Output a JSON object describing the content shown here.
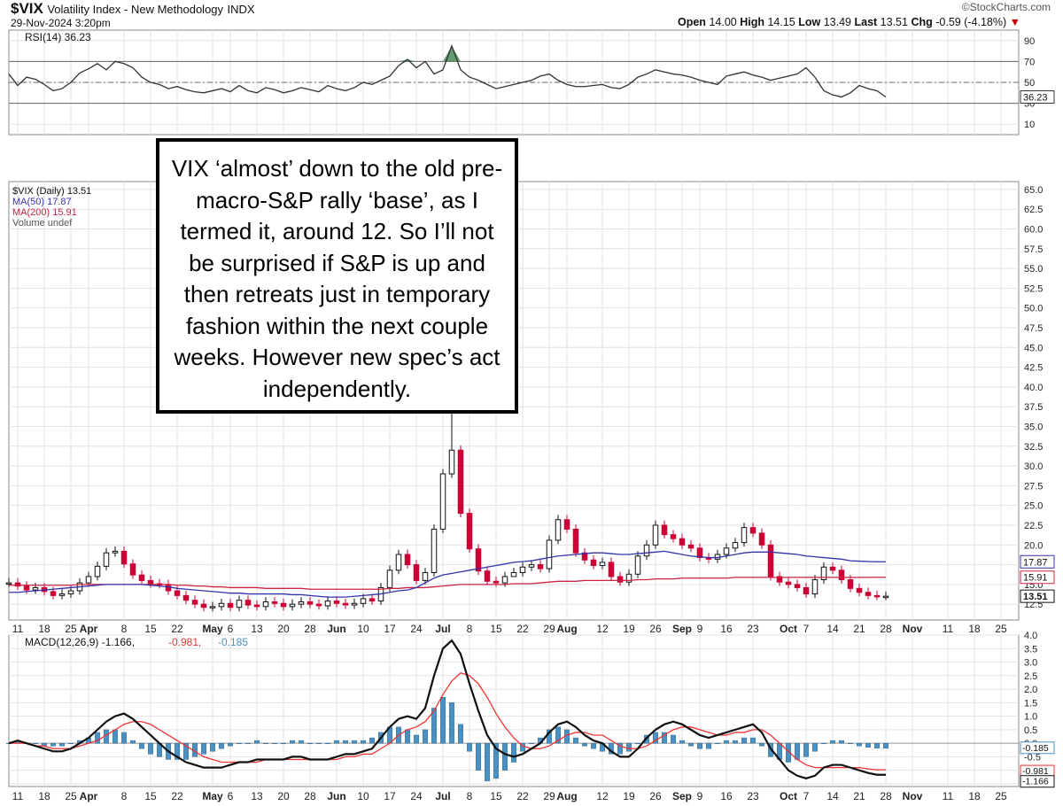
{
  "header": {
    "symbol": "$VIX",
    "name": "Volatility Index - New Methodology",
    "exchange": "INDX",
    "datetime": "29-Nov-2024 3:20pm",
    "brand": "©StockCharts.com",
    "quote": {
      "open_label": "Open",
      "open": "14.00",
      "high_label": "High",
      "high": "14.15",
      "low_label": "Low",
      "low": "13.49",
      "last_label": "Last",
      "last": "13.51",
      "chg_label": "Chg",
      "chg": "-0.59 (-4.18%)",
      "chg_arrow": "▼"
    }
  },
  "annotation": "VIX ‘almost’ down to the old pre-macro-S&P rally ‘base’, as I termed it, around 12. So I’ll not be surprised if S&P is up and then retreats just in temporary fashion within the next couple weeks. However new spec’s act independently.",
  "colors": {
    "up": "#111111",
    "down": "#cc0033",
    "ma50": "#3333aa",
    "ma200": "#cc2244",
    "macd": "#111111",
    "signal": "#ee3333",
    "hist": "#4a90c2",
    "rsi": "#333333",
    "rsi_fill": "#4a8a5a"
  },
  "chart_data": [
    {
      "type": "line",
      "panel": "rsi",
      "legend": "RSI(14) 36.23",
      "last_label": "36.23",
      "yticks": [
        "90",
        "70",
        "50",
        "30",
        "10"
      ],
      "ylim": [
        0,
        100
      ],
      "reference_lines": [
        70,
        50,
        30
      ],
      "x": [
        0,
        2,
        4,
        6,
        8,
        10,
        12,
        14,
        16,
        18,
        20,
        22,
        24,
        26,
        28,
        30,
        32,
        34,
        36,
        38,
        40,
        42,
        44,
        46,
        48,
        50,
        52,
        54,
        56,
        58,
        60,
        62,
        64,
        66,
        68,
        70,
        72,
        74,
        76,
        78,
        80,
        82,
        84,
        86,
        88,
        90,
        92,
        94,
        96,
        98,
        100,
        102,
        104,
        106,
        108,
        110,
        112,
        114,
        116,
        118,
        120,
        122,
        124,
        126,
        128,
        130,
        132,
        134,
        136,
        138,
        140,
        142,
        144,
        146,
        148,
        150,
        152,
        154,
        156,
        158,
        160,
        162,
        164,
        166,
        168,
        170,
        172,
        174,
        176,
        178,
        180,
        182,
        184,
        186,
        188,
        190,
        192,
        194,
        196,
        198
      ],
      "values": [
        58,
        47,
        55,
        53,
        48,
        42,
        44,
        50,
        59,
        63,
        68,
        62,
        70,
        68,
        64,
        55,
        50,
        48,
        44,
        46,
        43,
        41,
        40,
        42,
        44,
        41,
        47,
        42,
        40,
        45,
        43,
        40,
        42,
        45,
        43,
        41,
        47,
        44,
        42,
        45,
        50,
        48,
        52,
        56,
        66,
        72,
        64,
        70,
        58,
        62,
        85,
        62,
        55,
        52,
        48,
        44,
        46,
        48,
        50,
        52,
        56,
        58,
        52,
        48,
        46,
        46,
        47,
        48,
        45,
        44,
        48,
        55,
        58,
        62,
        60,
        58,
        57,
        55,
        52,
        50,
        48,
        56,
        58,
        60,
        57,
        55,
        52,
        54,
        56,
        58,
        64,
        55,
        42,
        38,
        36,
        40,
        47,
        44,
        42,
        36
      ],
      "series_name": "RSI(14)"
    },
    {
      "type": "candlestick",
      "panel": "price",
      "legend": [
        "$VIX (Daily) 13.51",
        "MA(50) 17.87",
        "MA(200) 15.91",
        "Volume undef"
      ],
      "yticks": [
        "65.0",
        "62.5",
        "60.0",
        "57.5",
        "55.0",
        "52.5",
        "50.0",
        "47.5",
        "45.0",
        "42.5",
        "40.0",
        "37.5",
        "35.0",
        "32.5",
        "30.0",
        "27.5",
        "25.0",
        "22.5",
        "20.0",
        "17.5",
        "15.0",
        "12.5"
      ],
      "ylim": [
        10.5,
        66
      ],
      "last_labels": {
        "ma50": "17.87",
        "ma200": "15.91",
        "last": "13.51"
      },
      "x": [
        0,
        2,
        4,
        6,
        8,
        10,
        12,
        14,
        16,
        18,
        20,
        22,
        24,
        26,
        28,
        30,
        32,
        34,
        36,
        38,
        40,
        42,
        44,
        46,
        48,
        50,
        52,
        54,
        56,
        58,
        60,
        62,
        64,
        66,
        68,
        70,
        72,
        74,
        76,
        78,
        80,
        82,
        84,
        86,
        88,
        90,
        92,
        94,
        96,
        98,
        100,
        102,
        104,
        106,
        108,
        110,
        112,
        114,
        116,
        118,
        120,
        122,
        124,
        126,
        128,
        130,
        132,
        134,
        136,
        138,
        140,
        142,
        144,
        146,
        148,
        150,
        152,
        154,
        156,
        158,
        160,
        162,
        164,
        166,
        168,
        170,
        172,
        174,
        176,
        178,
        180,
        182,
        184,
        186,
        188,
        190,
        192,
        194,
        196,
        198
      ],
      "close": [
        15.2,
        14.8,
        14.3,
        14.6,
        14.1,
        13.6,
        13.8,
        14.2,
        15.2,
        16.0,
        17.3,
        19.0,
        19.2,
        17.6,
        16.2,
        15.5,
        15.1,
        15.0,
        14.2,
        13.6,
        13.0,
        12.5,
        12.1,
        12.2,
        12.6,
        12.1,
        13.0,
        12.4,
        12.2,
        12.8,
        12.6,
        12.2,
        12.5,
        12.8,
        12.5,
        12.3,
        12.9,
        12.6,
        12.4,
        12.6,
        13.2,
        12.9,
        14.6,
        16.8,
        18.8,
        17.5,
        15.5,
        16.5,
        22.0,
        29.0,
        32.0,
        24.0,
        19.5,
        16.7,
        15.4,
        15.2,
        16.0,
        16.5,
        17.2,
        17.5,
        17.0,
        20.6,
        23.2,
        22.0,
        19.0,
        18.1,
        17.4,
        17.8,
        16.0,
        15.3,
        16.3,
        18.6,
        20.0,
        22.5,
        21.3,
        20.8,
        20.0,
        19.6,
        18.4,
        18.2,
        18.8,
        19.6,
        20.3,
        22.2,
        21.5,
        20.0,
        16.0,
        15.3,
        15.0,
        14.6,
        13.8,
        15.6,
        17.2,
        16.8,
        15.6,
        14.5,
        14.0,
        13.6,
        13.51,
        13.51
      ],
      "ma50": [
        14.0,
        14.0,
        14.1,
        14.2,
        14.3,
        14.4,
        14.5,
        14.6,
        14.7,
        14.8,
        14.9,
        15.0,
        15.0,
        15.0,
        15.0,
        15.0,
        14.9,
        14.8,
        14.7,
        14.5,
        14.4,
        14.3,
        14.2,
        14.1,
        14.0,
        13.9,
        13.9,
        13.8,
        13.8,
        13.8,
        13.8,
        13.8,
        13.7,
        13.7,
        13.6,
        13.5,
        13.4,
        13.4,
        13.4,
        13.5,
        13.6,
        13.7,
        13.8,
        14.0,
        14.2,
        14.3,
        14.6,
        15.2,
        15.8,
        16.2,
        16.4,
        16.6,
        16.8,
        17.0,
        17.2,
        17.4,
        17.6,
        17.8,
        17.9,
        18.0,
        18.2,
        18.4,
        18.6,
        18.7,
        18.8,
        18.9,
        19.0,
        19.0,
        18.9,
        18.8,
        18.8,
        18.9,
        19.0,
        19.1,
        19.2,
        19.0,
        18.8,
        18.6,
        18.5,
        18.4,
        18.4,
        18.6,
        18.8,
        19.0,
        19.1,
        19.1,
        19.1,
        19.0,
        18.9,
        18.8,
        18.6,
        18.5,
        18.4,
        18.3,
        18.2,
        18.0,
        17.95,
        17.9,
        17.87,
        17.87
      ],
      "ma200": [
        14.9,
        14.9,
        14.9,
        14.9,
        14.9,
        14.9,
        14.9,
        14.9,
        15.0,
        15.0,
        15.0,
        15.0,
        15.0,
        15.0,
        15.0,
        15.0,
        15.0,
        15.0,
        15.0,
        14.9,
        14.9,
        14.8,
        14.8,
        14.7,
        14.7,
        14.6,
        14.6,
        14.6,
        14.6,
        14.5,
        14.5,
        14.5,
        14.5,
        14.5,
        14.4,
        14.4,
        14.4,
        14.4,
        14.4,
        14.4,
        14.4,
        14.4,
        14.4,
        14.5,
        14.5,
        14.6,
        14.6,
        14.6,
        14.7,
        14.8,
        14.9,
        15.0,
        15.0,
        15.0,
        15.0,
        15.0,
        15.0,
        15.1,
        15.1,
        15.1,
        15.2,
        15.3,
        15.4,
        15.4,
        15.4,
        15.5,
        15.5,
        15.5,
        15.5,
        15.5,
        15.5,
        15.6,
        15.6,
        15.7,
        15.7,
        15.7,
        15.8,
        15.8,
        15.8,
        15.8,
        15.8,
        15.8,
        15.9,
        15.9,
        15.9,
        15.9,
        15.9,
        15.9,
        15.9,
        15.9,
        15.9,
        15.9,
        15.9,
        15.9,
        15.9,
        15.9,
        15.9,
        15.9,
        15.91,
        15.91
      ],
      "series_names": [
        "$VIX (Daily)",
        "MA(50)",
        "MA(200)"
      ]
    },
    {
      "type": "line",
      "panel": "macd",
      "legend_prefix": "MACD(12,26,9)",
      "legend_macd": "-1.166",
      "legend_signal": "-0.981",
      "legend_hist": "-0.185",
      "last_labels": {
        "hist": "-0.185",
        "signal": "-0.981",
        "macd": "-1.166"
      },
      "yticks": [
        "4.0",
        "3.5",
        "3.0",
        "2.5",
        "2.0",
        "1.5",
        "1.0",
        "0.5",
        "0.0",
        "-0.5",
        "-1.0",
        "-1.5"
      ],
      "ylim": [
        -1.6,
        4.0
      ],
      "x": [
        0,
        2,
        4,
        6,
        8,
        10,
        12,
        14,
        16,
        18,
        20,
        22,
        24,
        26,
        28,
        30,
        32,
        34,
        36,
        38,
        40,
        42,
        44,
        46,
        48,
        50,
        52,
        54,
        56,
        58,
        60,
        62,
        64,
        66,
        68,
        70,
        72,
        74,
        76,
        78,
        80,
        82,
        84,
        86,
        88,
        90,
        92,
        94,
        96,
        98,
        100,
        102,
        104,
        106,
        108,
        110,
        112,
        114,
        116,
        118,
        120,
        122,
        124,
        126,
        128,
        130,
        132,
        134,
        136,
        138,
        140,
        142,
        144,
        146,
        148,
        150,
        152,
        154,
        156,
        158,
        160,
        162,
        164,
        166,
        168,
        170,
        172,
        174,
        176,
        178,
        180,
        182,
        184,
        186,
        188,
        190,
        192,
        194,
        196,
        198
      ],
      "macd": [
        0.0,
        0.1,
        0.0,
        -0.1,
        -0.2,
        -0.3,
        -0.3,
        -0.2,
        0.0,
        0.2,
        0.5,
        0.8,
        1.0,
        1.1,
        0.9,
        0.6,
        0.3,
        0.0,
        -0.3,
        -0.5,
        -0.7,
        -0.8,
        -0.9,
        -0.9,
        -0.9,
        -0.8,
        -0.7,
        -0.7,
        -0.6,
        -0.6,
        -0.6,
        -0.6,
        -0.5,
        -0.5,
        -0.6,
        -0.6,
        -0.6,
        -0.5,
        -0.4,
        -0.4,
        -0.3,
        -0.2,
        0.2,
        0.6,
        0.9,
        1.0,
        0.9,
        1.3,
        2.5,
        3.5,
        3.8,
        3.3,
        2.2,
        1.2,
        0.3,
        -0.2,
        -0.4,
        -0.5,
        -0.4,
        -0.2,
        0.0,
        0.4,
        0.7,
        0.8,
        0.6,
        0.3,
        0.1,
        0.0,
        -0.3,
        -0.5,
        -0.5,
        -0.2,
        0.2,
        0.5,
        0.7,
        0.8,
        0.7,
        0.5,
        0.3,
        0.2,
        0.3,
        0.4,
        0.5,
        0.6,
        0.7,
        0.4,
        -0.2,
        -0.6,
        -1.0,
        -1.2,
        -1.3,
        -1.2,
        -0.9,
        -0.8,
        -0.8,
        -0.9,
        -1.0,
        -1.1,
        -1.166,
        -1.166
      ],
      "signal": [
        0.0,
        0.0,
        0.0,
        -0.1,
        -0.1,
        -0.2,
        -0.2,
        -0.2,
        -0.1,
        0.0,
        0.1,
        0.3,
        0.5,
        0.7,
        0.8,
        0.8,
        0.7,
        0.5,
        0.3,
        0.1,
        -0.1,
        -0.3,
        -0.5,
        -0.6,
        -0.7,
        -0.7,
        -0.7,
        -0.7,
        -0.7,
        -0.6,
        -0.6,
        -0.6,
        -0.6,
        -0.6,
        -0.6,
        -0.6,
        -0.6,
        -0.6,
        -0.5,
        -0.5,
        -0.4,
        -0.4,
        -0.2,
        0.0,
        0.3,
        0.5,
        0.6,
        0.8,
        1.2,
        1.8,
        2.3,
        2.6,
        2.5,
        2.2,
        1.7,
        1.1,
        0.6,
        0.2,
        -0.1,
        -0.2,
        -0.2,
        -0.1,
        0.1,
        0.3,
        0.4,
        0.4,
        0.3,
        0.3,
        0.1,
        -0.1,
        -0.2,
        -0.2,
        -0.1,
        0.1,
        0.3,
        0.5,
        0.6,
        0.6,
        0.5,
        0.4,
        0.3,
        0.3,
        0.4,
        0.4,
        0.5,
        0.5,
        0.3,
        0.0,
        -0.3,
        -0.6,
        -0.8,
        -0.9,
        -0.9,
        -0.9,
        -0.9,
        -0.9,
        -0.9,
        -0.95,
        -0.981,
        -0.981
      ],
      "series_names": [
        "MACD(12,26,9)"
      ]
    }
  ],
  "x_axis": {
    "labels": [
      {
        "x": 2,
        "text": "11",
        "bold": false
      },
      {
        "x": 8,
        "text": "18",
        "bold": false
      },
      {
        "x": 14,
        "text": "25",
        "bold": false
      },
      {
        "x": 18,
        "text": "Apr",
        "bold": true
      },
      {
        "x": 26,
        "text": "8",
        "bold": false
      },
      {
        "x": 32,
        "text": "15",
        "bold": false
      },
      {
        "x": 38,
        "text": "22",
        "bold": false
      },
      {
        "x": 46,
        "text": "May",
        "bold": true
      },
      {
        "x": 50,
        "text": "6",
        "bold": false
      },
      {
        "x": 56,
        "text": "13",
        "bold": false
      },
      {
        "x": 62,
        "text": "20",
        "bold": false
      },
      {
        "x": 68,
        "text": "28",
        "bold": false
      },
      {
        "x": 74,
        "text": "Jun",
        "bold": true
      },
      {
        "x": 80,
        "text": "10",
        "bold": false
      },
      {
        "x": 86,
        "text": "17",
        "bold": false
      },
      {
        "x": 92,
        "text": "24",
        "bold": false
      },
      {
        "x": 98,
        "text": "Jul",
        "bold": true
      },
      {
        "x": 104,
        "text": "8",
        "bold": false
      },
      {
        "x": 110,
        "text": "15",
        "bold": false
      },
      {
        "x": 116,
        "text": "22",
        "bold": false
      },
      {
        "x": 122,
        "text": "29",
        "bold": false
      },
      {
        "x": 126,
        "text": "Aug",
        "bold": true
      },
      {
        "x": 134,
        "text": "12",
        "bold": false
      },
      {
        "x": 140,
        "text": "19",
        "bold": false
      },
      {
        "x": 146,
        "text": "26",
        "bold": false
      },
      {
        "x": 152,
        "text": "Sep",
        "bold": true
      },
      {
        "x": 156,
        "text": "9",
        "bold": false
      },
      {
        "x": 162,
        "text": "16",
        "bold": false
      },
      {
        "x": 168,
        "text": "23",
        "bold": false
      },
      {
        "x": 176,
        "text": "Oct",
        "bold": true
      },
      {
        "x": 180,
        "text": "7",
        "bold": false
      },
      {
        "x": 186,
        "text": "14",
        "bold": false
      },
      {
        "x": 192,
        "text": "21",
        "bold": false
      },
      {
        "x": 198,
        "text": "28",
        "bold": false
      },
      {
        "x": 204,
        "text": "Nov",
        "bold": true
      },
      {
        "x": 212,
        "text": "11",
        "bold": false
      },
      {
        "x": 218,
        "text": "18",
        "bold": false
      },
      {
        "x": 224,
        "text": "25",
        "bold": false
      }
    ],
    "xlim": [
      0,
      228
    ]
  }
}
